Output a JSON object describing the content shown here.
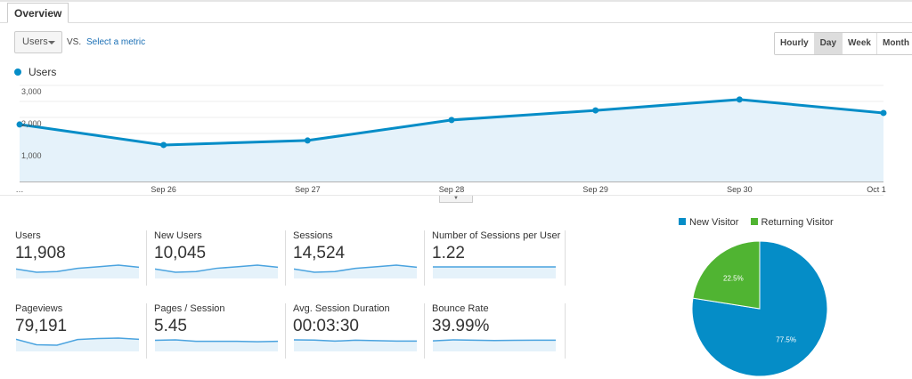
{
  "tabs": [
    {
      "label": "Overview",
      "active": true
    }
  ],
  "metric_selector": {
    "value": "Users",
    "vs_label": "VS.",
    "select_metric_link": "Select a metric"
  },
  "granularity": {
    "options": [
      "Hourly",
      "Day",
      "Week",
      "Month"
    ],
    "selected": "Day"
  },
  "colors": {
    "accent": "#058dc7",
    "fill": "#e5f2fa",
    "returning": "#50b432"
  },
  "chart_data": [
    {
      "type": "area",
      "series": [
        {
          "name": "Users",
          "values": [
            1780,
            1140,
            1280,
            1920,
            2220,
            2560,
            2140
          ]
        }
      ],
      "x": [
        "…",
        "Sep 26",
        "Sep 27",
        "Sep 28",
        "Sep 29",
        "Sep 30",
        "Oct 1"
      ],
      "yticks": [
        "1,000",
        "2,000",
        "3,000"
      ],
      "ytick_values": [
        1000,
        2000,
        3000
      ],
      "ylim": [
        0,
        3000
      ],
      "legend": "top-left",
      "grid": true
    },
    {
      "type": "pie",
      "legend": "top",
      "categories": [
        "New Visitor",
        "Returning Visitor"
      ],
      "values": [
        77.5,
        22.5
      ],
      "labels": [
        "77.5%",
        "22.5%"
      ],
      "colors": [
        "#058dc7",
        "#50b432"
      ]
    }
  ],
  "scorecards": [
    {
      "title": "Users",
      "value": "11,908",
      "spark": [
        1780,
        1140,
        1280,
        1920,
        2220,
        2560,
        2140
      ]
    },
    {
      "title": "New Users",
      "value": "10,045",
      "spark": [
        1500,
        960,
        1080,
        1620,
        1870,
        2150,
        1800
      ]
    },
    {
      "title": "Sessions",
      "value": "14,524",
      "spark": [
        2170,
        1390,
        1560,
        2340,
        2710,
        3120,
        2610
      ]
    },
    {
      "title": "Number of Sessions per User",
      "value": "1.22",
      "spark": [
        1.22,
        1.22,
        1.22,
        1.22,
        1.22,
        1.22,
        1.22
      ]
    },
    {
      "title": "Pageviews",
      "value": "79,191",
      "spark": [
        10000,
        7800,
        7600,
        9900,
        10300,
        10500,
        10000
      ]
    },
    {
      "title": "Pages / Session",
      "value": "5.45",
      "spark": [
        5.6,
        5.7,
        5.4,
        5.4,
        5.4,
        5.3,
        5.4
      ]
    },
    {
      "title": "Avg. Session Duration",
      "value": "00:03:30",
      "spark": [
        210,
        208,
        200,
        207,
        204,
        200,
        200
      ]
    },
    {
      "title": "Bounce Rate",
      "value": "39.99%",
      "spark": [
        39,
        40.5,
        40,
        39.5,
        39.8,
        40,
        40
      ]
    }
  ]
}
